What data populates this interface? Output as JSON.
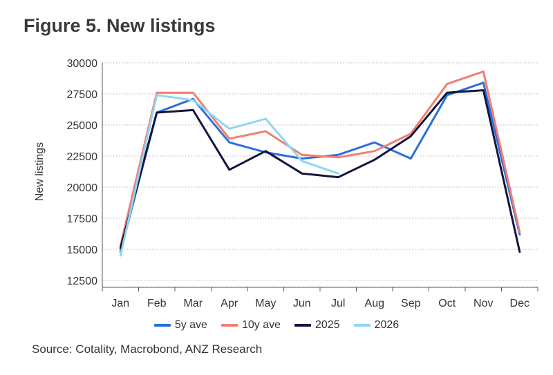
{
  "title": "Figure 5.  New listings",
  "source": "Source: Cotality, Macrobond, ANZ Research",
  "chart_data": {
    "type": "line",
    "ylabel": "New listings",
    "xlabel": "",
    "ylim": [
      12500,
      30000
    ],
    "yticks": [
      12500,
      15000,
      17500,
      20000,
      22500,
      25000,
      27500,
      30000
    ],
    "categories": [
      "Jan",
      "Feb",
      "Mar",
      "Apr",
      "May",
      "Jun",
      "Jul",
      "Aug",
      "Sep",
      "Oct",
      "Nov",
      "Dec"
    ],
    "grid": "horizontal dotted",
    "legend_position": "bottom",
    "series": [
      {
        "name": "5y ave",
        "color": "#2a6fdb",
        "values": [
          14800,
          26000,
          27100,
          23600,
          22800,
          22300,
          22600,
          23600,
          22300,
          27400,
          28400,
          16200
        ]
      },
      {
        "name": "10y ave",
        "color": "#f07f72",
        "values": [
          15300,
          27600,
          27600,
          23900,
          24500,
          22600,
          22400,
          22900,
          24300,
          28300,
          29300,
          16400
        ]
      },
      {
        "name": "2025",
        "color": "#14143c",
        "values": [
          15100,
          26000,
          26200,
          21400,
          22900,
          21100,
          20800,
          22200,
          24100,
          27600,
          27800,
          14800
        ]
      },
      {
        "name": "2026",
        "color": "#8fd6f4",
        "values": [
          14500,
          27400,
          27000,
          24700,
          25500,
          22100,
          21100,
          null,
          null,
          null,
          null,
          null
        ]
      }
    ]
  }
}
